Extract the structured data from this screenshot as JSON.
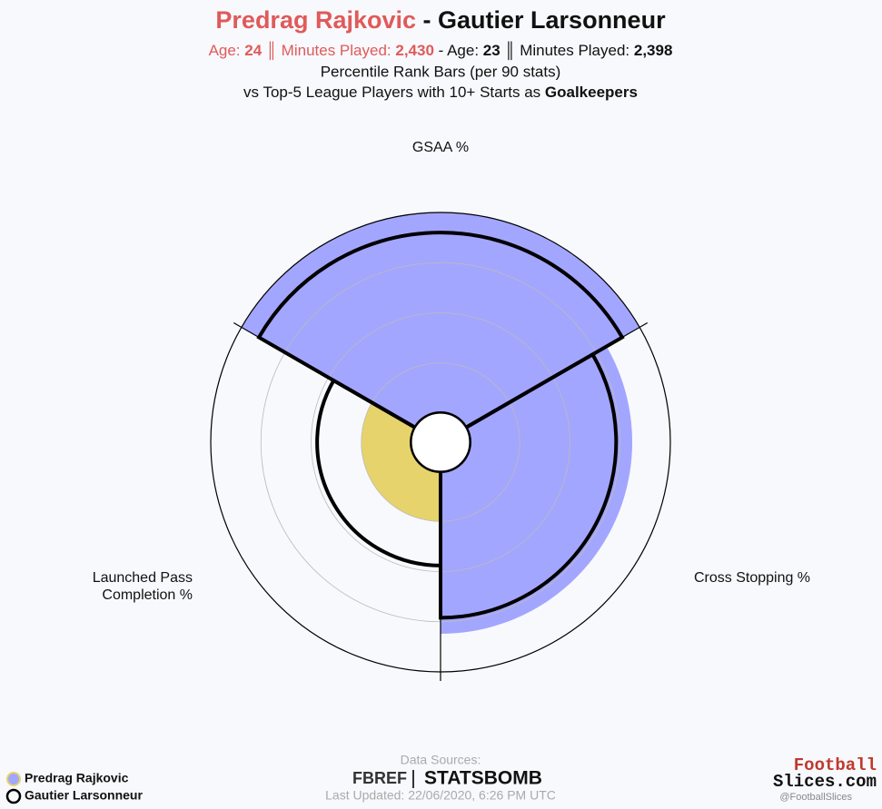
{
  "chart_data": {
    "type": "polar-bar",
    "title": {
      "player1": "Predrag Rajkovic",
      "separator": " - ",
      "player2": "Gautier Larsonneur"
    },
    "subtitle": [
      "Age: ",
      "24",
      " ║ Minutes Played: ",
      "2,430",
      " - Age: ",
      "23",
      " ║ Minutes Played: ",
      "2,398"
    ],
    "description": [
      "Percentile Rank Bars (per 90 stats)",
      "vs Top-5 League Players with 10+ Starts as ",
      "Goalkeepers"
    ],
    "categories": [
      "GSAA %",
      "Cross Stopping %",
      "Launched Pass\nCompletion %"
    ],
    "series": [
      {
        "name": "Predrag Rajkovic",
        "colors": [
          "#a3a6ff",
          "#a3a6ff",
          "#e6d36b"
        ],
        "values": [
          100,
          81,
          25
        ]
      },
      {
        "name": "Gautier Larsonneur",
        "color": "#000000",
        "values": [
          90,
          73,
          47
        ]
      }
    ],
    "rlim": [
      0,
      100
    ],
    "rticks": [
      25,
      50,
      75,
      100
    ],
    "footer": {
      "sources_label": "Data Sources:",
      "sources": [
        "FBREF",
        "STATSBOMB"
      ],
      "updated": "Last Updated: 22/06/2020, 6:26 PM UTC",
      "brand": [
        "Football",
        "Slices.com",
        "@FootballSlices"
      ]
    }
  }
}
